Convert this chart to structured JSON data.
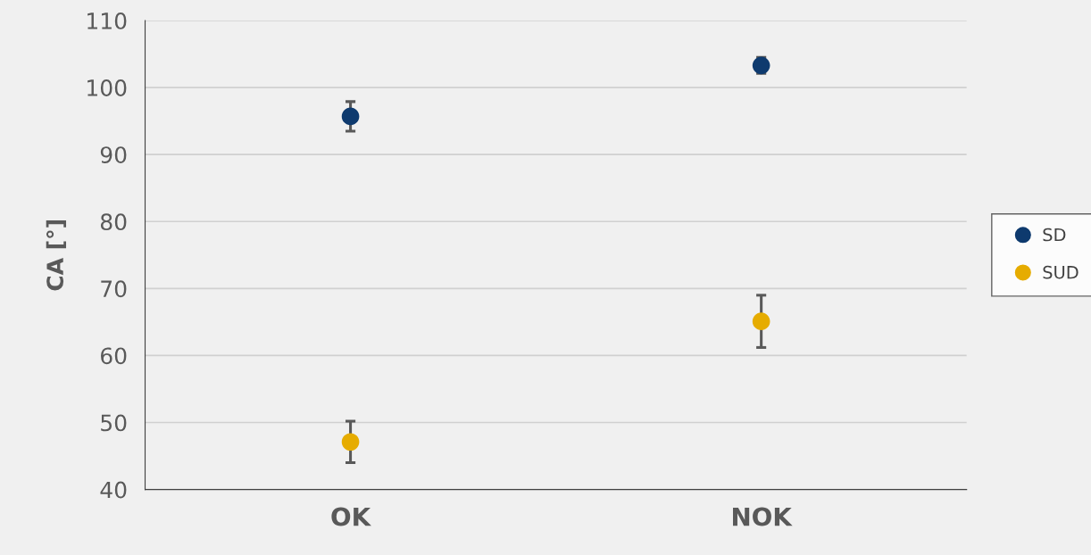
{
  "chart_data": {
    "type": "scatter",
    "ylabel": "CA [°]",
    "categories": [
      "OK",
      "NOK"
    ],
    "series": [
      {
        "name": "SD",
        "color": "#0e3a6e",
        "values": [
          95.7,
          103.3
        ],
        "errors": [
          2.2,
          1.2
        ]
      },
      {
        "name": "SUD",
        "color": "#e6ac00",
        "values": [
          47.1,
          65.1
        ],
        "errors": [
          3.1,
          3.9
        ]
      }
    ],
    "ylim": [
      40,
      110
    ],
    "yticks": [
      40,
      50,
      60,
      70,
      80,
      90,
      100,
      110
    ],
    "grid": "y",
    "legend": "right",
    "marker": "circle"
  }
}
